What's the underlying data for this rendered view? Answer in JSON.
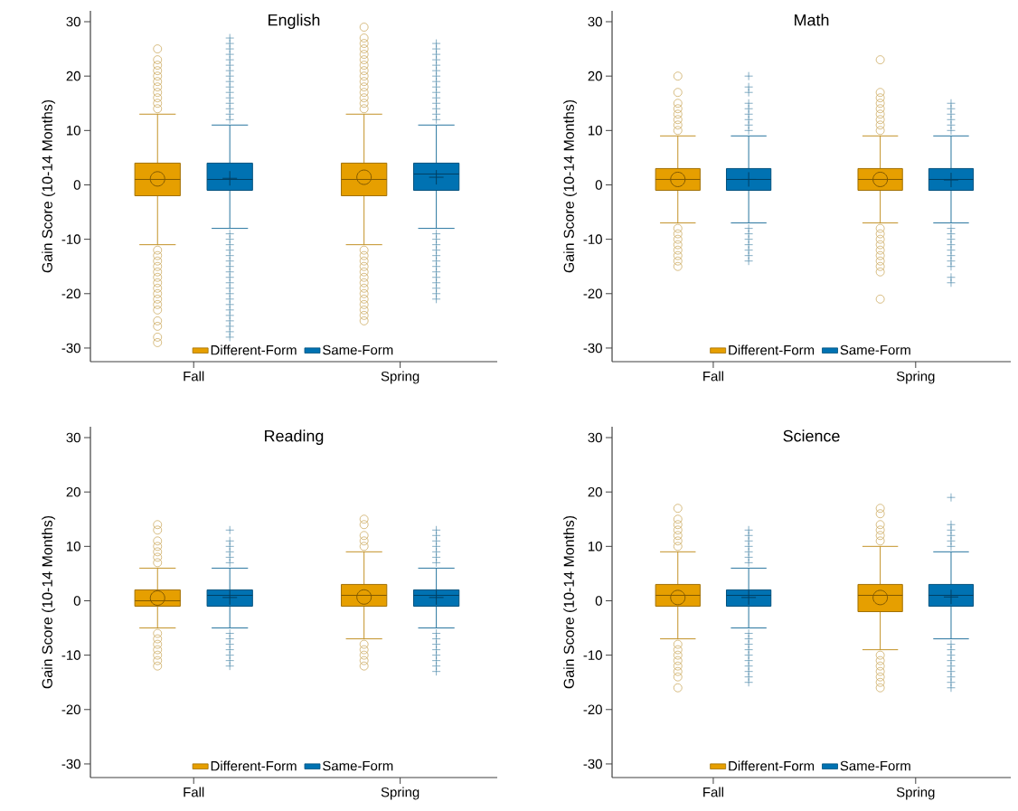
{
  "chart_data": [
    {
      "type": "box",
      "title": "English",
      "ylabel": "Gain Score (10-14 Months)",
      "categories": [
        "Fall",
        "Spring"
      ],
      "ylim": [
        -32.5,
        32
      ],
      "yticks": [
        -30,
        -20,
        -10,
        0,
        10,
        20,
        30
      ],
      "legend": "bottom",
      "series": [
        {
          "name": "Different-Form",
          "color": "#e69f00",
          "marker": "circle",
          "boxes": [
            {
              "low": -11,
              "q1": -2,
              "median": 1,
              "q3": 4,
              "high": 13,
              "mean": 1.1,
              "outliers": [
                14,
                15,
                16,
                17,
                18,
                19,
                20,
                21,
                22,
                23,
                25,
                -12,
                -13,
                -14,
                -15,
                -16,
                -17,
                -18,
                -19,
                -20,
                -21,
                -22,
                -23,
                -25,
                -26,
                -28,
                -29
              ]
            },
            {
              "low": -11,
              "q1": -2,
              "median": 1,
              "q3": 4,
              "high": 13,
              "mean": 1.4,
              "outliers": [
                14,
                15,
                16,
                17,
                18,
                19,
                20,
                21,
                22,
                23,
                24,
                25,
                26,
                27,
                29,
                -12,
                -13,
                -14,
                -15,
                -16,
                -17,
                -18,
                -19,
                -20,
                -21,
                -22,
                -23,
                -24,
                -25
              ]
            }
          ]
        },
        {
          "name": "Same-Form",
          "color": "#0072b2",
          "marker": "cross",
          "boxes": [
            {
              "low": -8,
              "q1": -1,
              "median": 1,
              "q3": 4,
              "high": 11,
              "mean": 1.2,
              "outliers": [
                12,
                13,
                14,
                15,
                16,
                17,
                18,
                19,
                20,
                21,
                22,
                23,
                24,
                25,
                26,
                27,
                -9,
                -10,
                -11,
                -12,
                -13,
                -14,
                -15,
                -16,
                -17,
                -18,
                -19,
                -20,
                -21,
                -22,
                -23,
                -24,
                -25,
                -26,
                -27,
                -28
              ]
            },
            {
              "low": -8,
              "q1": -1,
              "median": 2,
              "q3": 4,
              "high": 11,
              "mean": 1.4,
              "outliers": [
                12,
                13,
                14,
                15,
                16,
                17,
                18,
                19,
                20,
                21,
                22,
                23,
                24,
                25,
                26,
                -9,
                -10,
                -11,
                -12,
                -13,
                -14,
                -15,
                -16,
                -17,
                -18,
                -19,
                -20,
                -21
              ]
            }
          ]
        }
      ]
    },
    {
      "type": "box",
      "title": "Math",
      "ylabel": "Gain Score (10-14 Months)",
      "categories": [
        "Fall",
        "Spring"
      ],
      "ylim": [
        -32.5,
        32
      ],
      "yticks": [
        -30,
        -20,
        -10,
        0,
        10,
        20,
        30
      ],
      "legend": "bottom",
      "series": [
        {
          "name": "Different-Form",
          "color": "#e69f00",
          "marker": "circle",
          "boxes": [
            {
              "low": -7,
              "q1": -1,
              "median": 1,
              "q3": 3,
              "high": 9,
              "mean": 1,
              "outliers": [
                10,
                11,
                12,
                13,
                14,
                15,
                17,
                20,
                -8,
                -9,
                -10,
                -11,
                -12,
                -13,
                -14,
                -15
              ]
            },
            {
              "low": -7,
              "q1": -1,
              "median": 1,
              "q3": 3,
              "high": 9,
              "mean": 1,
              "outliers": [
                10,
                11,
                12,
                13,
                14,
                15,
                16,
                17,
                23,
                -8,
                -9,
                -10,
                -11,
                -12,
                -13,
                -14,
                -15,
                -16,
                -21
              ]
            }
          ]
        },
        {
          "name": "Same-Form",
          "color": "#0072b2",
          "marker": "cross",
          "boxes": [
            {
              "low": -7,
              "q1": -1,
              "median": 1,
              "q3": 3,
              "high": 9,
              "mean": 1,
              "outliers": [
                10,
                11,
                12,
                13,
                14,
                15,
                17,
                18,
                20,
                -8,
                -9,
                -10,
                -11,
                -12,
                -13,
                -14
              ]
            },
            {
              "low": -7,
              "q1": -1,
              "median": 1,
              "q3": 3,
              "high": 9,
              "mean": 0.9,
              "outliers": [
                10,
                11,
                12,
                13,
                14,
                15,
                -8,
                -9,
                -10,
                -11,
                -12,
                -13,
                -14,
                -15,
                -17,
                -18
              ]
            }
          ]
        }
      ]
    },
    {
      "type": "box",
      "title": "Reading",
      "ylabel": "Gain Score (10-14 Months)",
      "categories": [
        "Fall",
        "Spring"
      ],
      "ylim": [
        -32.5,
        32
      ],
      "yticks": [
        -30,
        -20,
        -10,
        0,
        10,
        20,
        30
      ],
      "legend": "bottom",
      "series": [
        {
          "name": "Different-Form",
          "color": "#e69f00",
          "marker": "circle",
          "boxes": [
            {
              "low": -5,
              "q1": -1,
              "median": 0,
              "q3": 2,
              "high": 6,
              "mean": 0.5,
              "outliers": [
                7,
                8,
                9,
                10,
                11,
                13,
                14,
                -6,
                -7,
                -8,
                -9,
                -10,
                -11,
                -12
              ]
            },
            {
              "low": -7,
              "q1": -1,
              "median": 1,
              "q3": 3,
              "high": 9,
              "mean": 0.7,
              "outliers": [
                10,
                11,
                12,
                14,
                15,
                -8,
                -9,
                -10,
                -11,
                -12
              ]
            }
          ]
        },
        {
          "name": "Same-Form",
          "color": "#0072b2",
          "marker": "cross",
          "boxes": [
            {
              "low": -5,
              "q1": -1,
              "median": 1,
              "q3": 2,
              "high": 6,
              "mean": 0.6,
              "outliers": [
                7,
                8,
                9,
                10,
                11,
                13,
                -6,
                -7,
                -8,
                -9,
                -10,
                -11,
                -12
              ]
            },
            {
              "low": -5,
              "q1": -1,
              "median": 1,
              "q3": 2,
              "high": 6,
              "mean": 0.6,
              "outliers": [
                7,
                8,
                9,
                10,
                11,
                12,
                13,
                -6,
                -7,
                -8,
                -9,
                -10,
                -11,
                -12,
                -13
              ]
            }
          ]
        }
      ]
    },
    {
      "type": "box",
      "title": "Science",
      "ylabel": "Gain Score (10-14 Months)",
      "categories": [
        "Fall",
        "Spring"
      ],
      "ylim": [
        -32.5,
        32
      ],
      "yticks": [
        -30,
        -20,
        -10,
        0,
        10,
        20,
        30
      ],
      "legend": "bottom",
      "series": [
        {
          "name": "Different-Form",
          "color": "#e69f00",
          "marker": "circle",
          "boxes": [
            {
              "low": -7,
              "q1": -1,
              "median": 1,
              "q3": 3,
              "high": 9,
              "mean": 0.6,
              "outliers": [
                10,
                11,
                12,
                13,
                14,
                15,
                17,
                -8,
                -9,
                -10,
                -11,
                -12,
                -13,
                -14,
                -16
              ]
            },
            {
              "low": -9,
              "q1": -2,
              "median": 1,
              "q3": 3,
              "high": 10,
              "mean": 0.6,
              "outliers": [
                11,
                12,
                13,
                14,
                16,
                17,
                -10,
                -11,
                -12,
                -13,
                -14,
                -15,
                -16
              ]
            }
          ]
        },
        {
          "name": "Same-Form",
          "color": "#0072b2",
          "marker": "cross",
          "boxes": [
            {
              "low": -5,
              "q1": -1,
              "median": 1,
              "q3": 2,
              "high": 6,
              "mean": 0.6,
              "outliers": [
                7,
                8,
                9,
                10,
                11,
                12,
                13,
                -6,
                -7,
                -8,
                -9,
                -10,
                -11,
                -12,
                -13,
                -14,
                -15
              ]
            },
            {
              "low": -7,
              "q1": -1,
              "median": 1,
              "q3": 3,
              "high": 9,
              "mean": 0.7,
              "outliers": [
                10,
                11,
                12,
                13,
                14,
                19,
                -8,
                -9,
                -10,
                -11,
                -12,
                -13,
                -14,
                -15,
                -16
              ]
            }
          ]
        }
      ]
    }
  ]
}
